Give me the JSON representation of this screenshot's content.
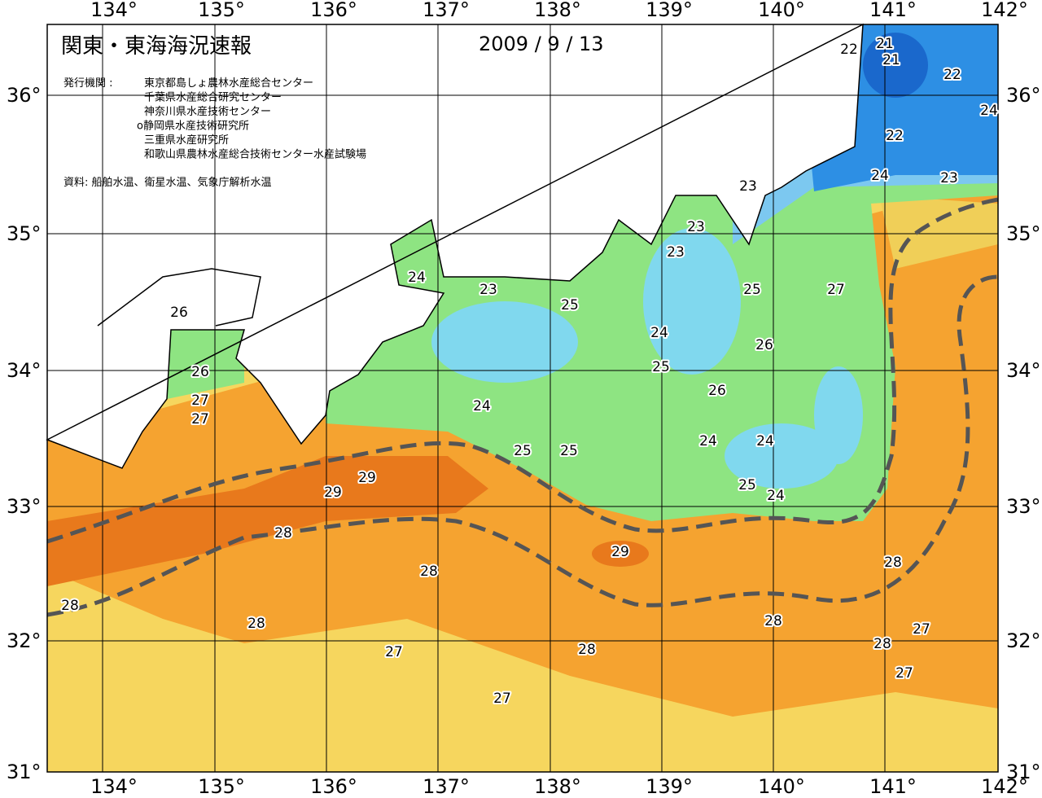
{
  "header": {
    "title": "関東・東海海況速報",
    "date": "2009 / 9 / 13"
  },
  "issuers": {
    "label": "発行機関 :",
    "items": [
      "東京都島しょ農林水産総合センター",
      "千葉県水産総合研究センター",
      "神奈川県水産技術センター",
      "o静岡県水産技術研究所",
      "三重県水産研究所",
      "和歌山県農林水産総合技術センター水産試験場"
    ]
  },
  "source": "資料: 船舶水温、衛星水温、気象庁解析水温",
  "axes": {
    "lon_labels": [
      "134°",
      "135°",
      "136°",
      "137°",
      "138°",
      "139°",
      "140°",
      "141°",
      "142°"
    ],
    "lat_labels": [
      "36°",
      "35°",
      "34°",
      "33°",
      "32°",
      "31°"
    ]
  },
  "contour_labels": [
    "22",
    "21",
    "21",
    "22",
    "24",
    "22",
    "24",
    "23",
    "23",
    "23",
    "23",
    "24",
    "23",
    "25",
    "25",
    "27",
    "26",
    "24",
    "26",
    "26",
    "25",
    "27",
    "26",
    "27",
    "24",
    "25",
    "25",
    "24",
    "24",
    "29",
    "29",
    "25",
    "24",
    "28",
    "29",
    "28",
    "28",
    "28",
    "28",
    "28",
    "27",
    "27",
    "28",
    "28",
    "27",
    "27"
  ]
}
